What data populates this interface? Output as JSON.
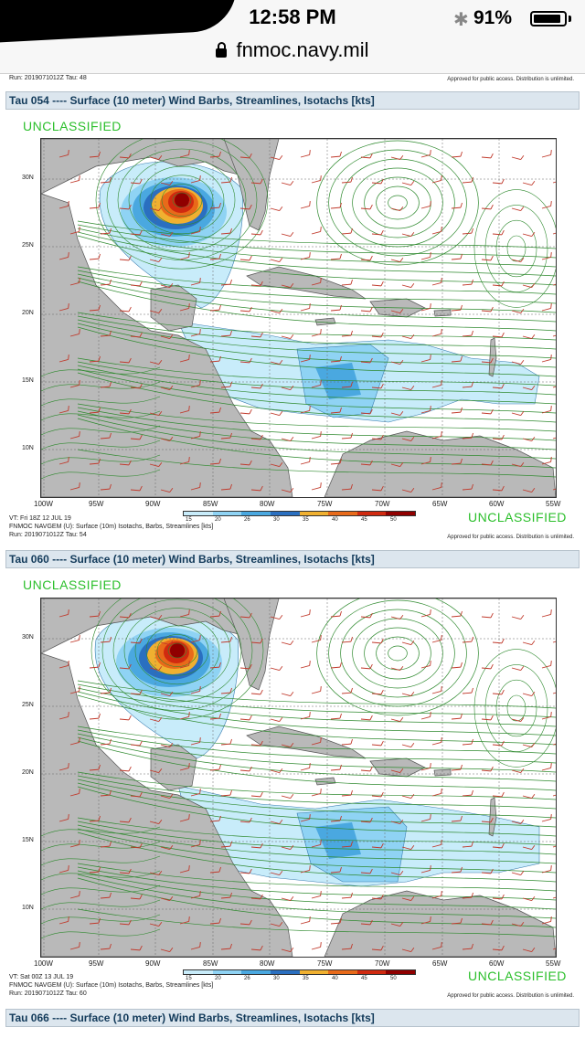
{
  "status": {
    "time": "12:58 PM",
    "bluetooth": "✱",
    "battery": "91%",
    "battery_level": 0.91
  },
  "browser": {
    "url": "fnmoc.navy.mil"
  },
  "top": {
    "run": "Run: 2019071012Z Tau: 48",
    "approved": "Approved for public access. Distribution is unlimited."
  },
  "panels": [
    {
      "header": "Tau 054 ---- Surface (10 meter) Wind Barbs, Streamlines, Isotachs [kts]",
      "unclassified_top": "UNCLASSIFIED",
      "unclassified_bottom": "UNCLASSIFIED",
      "vt": "VT: Fri 18Z 12 JUL 19",
      "model": "FNMOC NAVGEM (U): Surface (10m) Isotachs, Barbs, Streamlines [kts]",
      "run": "Run: 2019071012Z Tau: 54",
      "approved": "Approved for public access. Distribution is unlimited."
    },
    {
      "header": "Tau 060 ---- Surface (10 meter) Wind Barbs, Streamlines, Isotachs [kts]",
      "unclassified_top": "UNCLASSIFIED",
      "unclassified_bottom": "UNCLASSIFIED",
      "vt": "VT: Sat 00Z 13 JUL 19",
      "model": "FNMOC NAVGEM (U): Surface (10m) Isotachs, Barbs, Streamlines [kts]",
      "run": "Run: 2019071012Z Tau: 60",
      "approved": "Approved for public access. Distribution is unlimited."
    }
  ],
  "next_header": "Tau 066 ---- Surface (10 meter) Wind Barbs, Streamlines, Isotachs [kts]",
  "lat_labels": [
    "30N",
    "25N",
    "20N",
    "15N",
    "10N"
  ],
  "lon_labels": [
    "100W",
    "95W",
    "90W",
    "85W",
    "80W",
    "75W",
    "70W",
    "65W",
    "60W",
    "55W"
  ],
  "colorbar": {
    "ticks": [
      "15",
      "20",
      "26",
      "30",
      "35",
      "40",
      "45",
      "50"
    ],
    "colors": [
      "#c8ecfa",
      "#8fd3f4",
      "#4aa8e0",
      "#2a6fc0",
      "#f0b030",
      "#e86a1a",
      "#d02a10",
      "#900000"
    ]
  },
  "colors": {
    "land": "#b9b9b9",
    "streamline": "#2f8a2f",
    "barb": "#c0392b",
    "unclassified": "#2bbf2b",
    "header_bg": "#dce6ee"
  }
}
